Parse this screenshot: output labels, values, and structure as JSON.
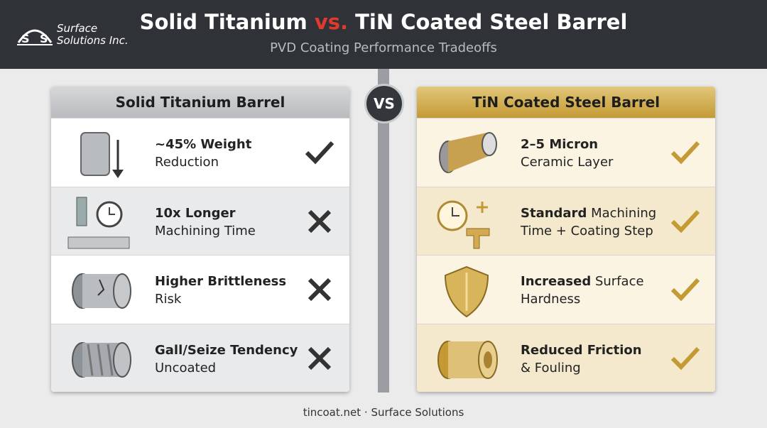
{
  "header": {
    "logo": [
      "Surface",
      "Solutions Inc."
    ],
    "title": {
      "left": "Solid Titanium",
      "vs": "vs.",
      "right": "TiN Coated Steel Barrel"
    },
    "subtitle": "PVD Coating Performance Tradeoffs"
  },
  "vs_badge": "VS",
  "left_panel": {
    "title": "Solid Titanium Barrel",
    "rows": [
      {
        "bold": "~45% Weight",
        "line2": "Reduction"
      },
      {
        "bold": "10x Longer",
        "line2": "Machining Time"
      },
      {
        "bold": "Higher Brittleness",
        "line2": "Risk"
      },
      {
        "bold": "Gall/Seize Tendency",
        "line2": "Uncoated"
      }
    ]
  },
  "right_panel": {
    "title": "TiN Coated Steel Barrel",
    "rows": [
      {
        "bold": "2–5 Micron",
        "line2": "Ceramic Layer"
      },
      {
        "bold": "Standard",
        "rest": "Machining",
        "line2": "Time + Coating Step"
      },
      {
        "bold": "Increased",
        "rest": "Surface",
        "line2": "Hardness"
      },
      {
        "bold": "Reduced Friction",
        "line2": "& Fouling"
      }
    ]
  },
  "footer": "tincoat.net · Surface Solutions"
}
